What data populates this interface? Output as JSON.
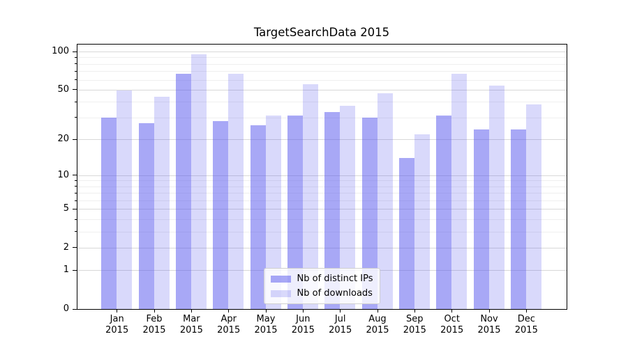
{
  "chart_data": {
    "type": "bar",
    "title": "TargetSearchData 2015",
    "categories": [
      "Jan",
      "Feb",
      "Mar",
      "Apr",
      "May",
      "Jun",
      "Jul",
      "Aug",
      "Sep",
      "Oct",
      "Nov",
      "Dec"
    ],
    "x_year": "2015",
    "series": [
      {
        "name": "Nb of distinct IPs",
        "color": "rgba(82,82,238,0.5)",
        "values": [
          30,
          27,
          67,
          28,
          26,
          31,
          33,
          30,
          14,
          31,
          24,
          24
        ]
      },
      {
        "name": "Nb of downloads",
        "color": "rgba(82,82,238,0.22)",
        "values": [
          49,
          44,
          95,
          67,
          31,
          55,
          37,
          47,
          22,
          67,
          54,
          38
        ]
      }
    ],
    "y_axis": {
      "scale": "log10(1+v)",
      "ticks": [
        0,
        1,
        2,
        5,
        10,
        20,
        50,
        100
      ],
      "minor_ticks": [
        3,
        4,
        6,
        7,
        8,
        9,
        30,
        40,
        60,
        70,
        80,
        90
      ],
      "max": 113.5
    },
    "grid": true,
    "legend": {
      "position": "lower center"
    }
  }
}
